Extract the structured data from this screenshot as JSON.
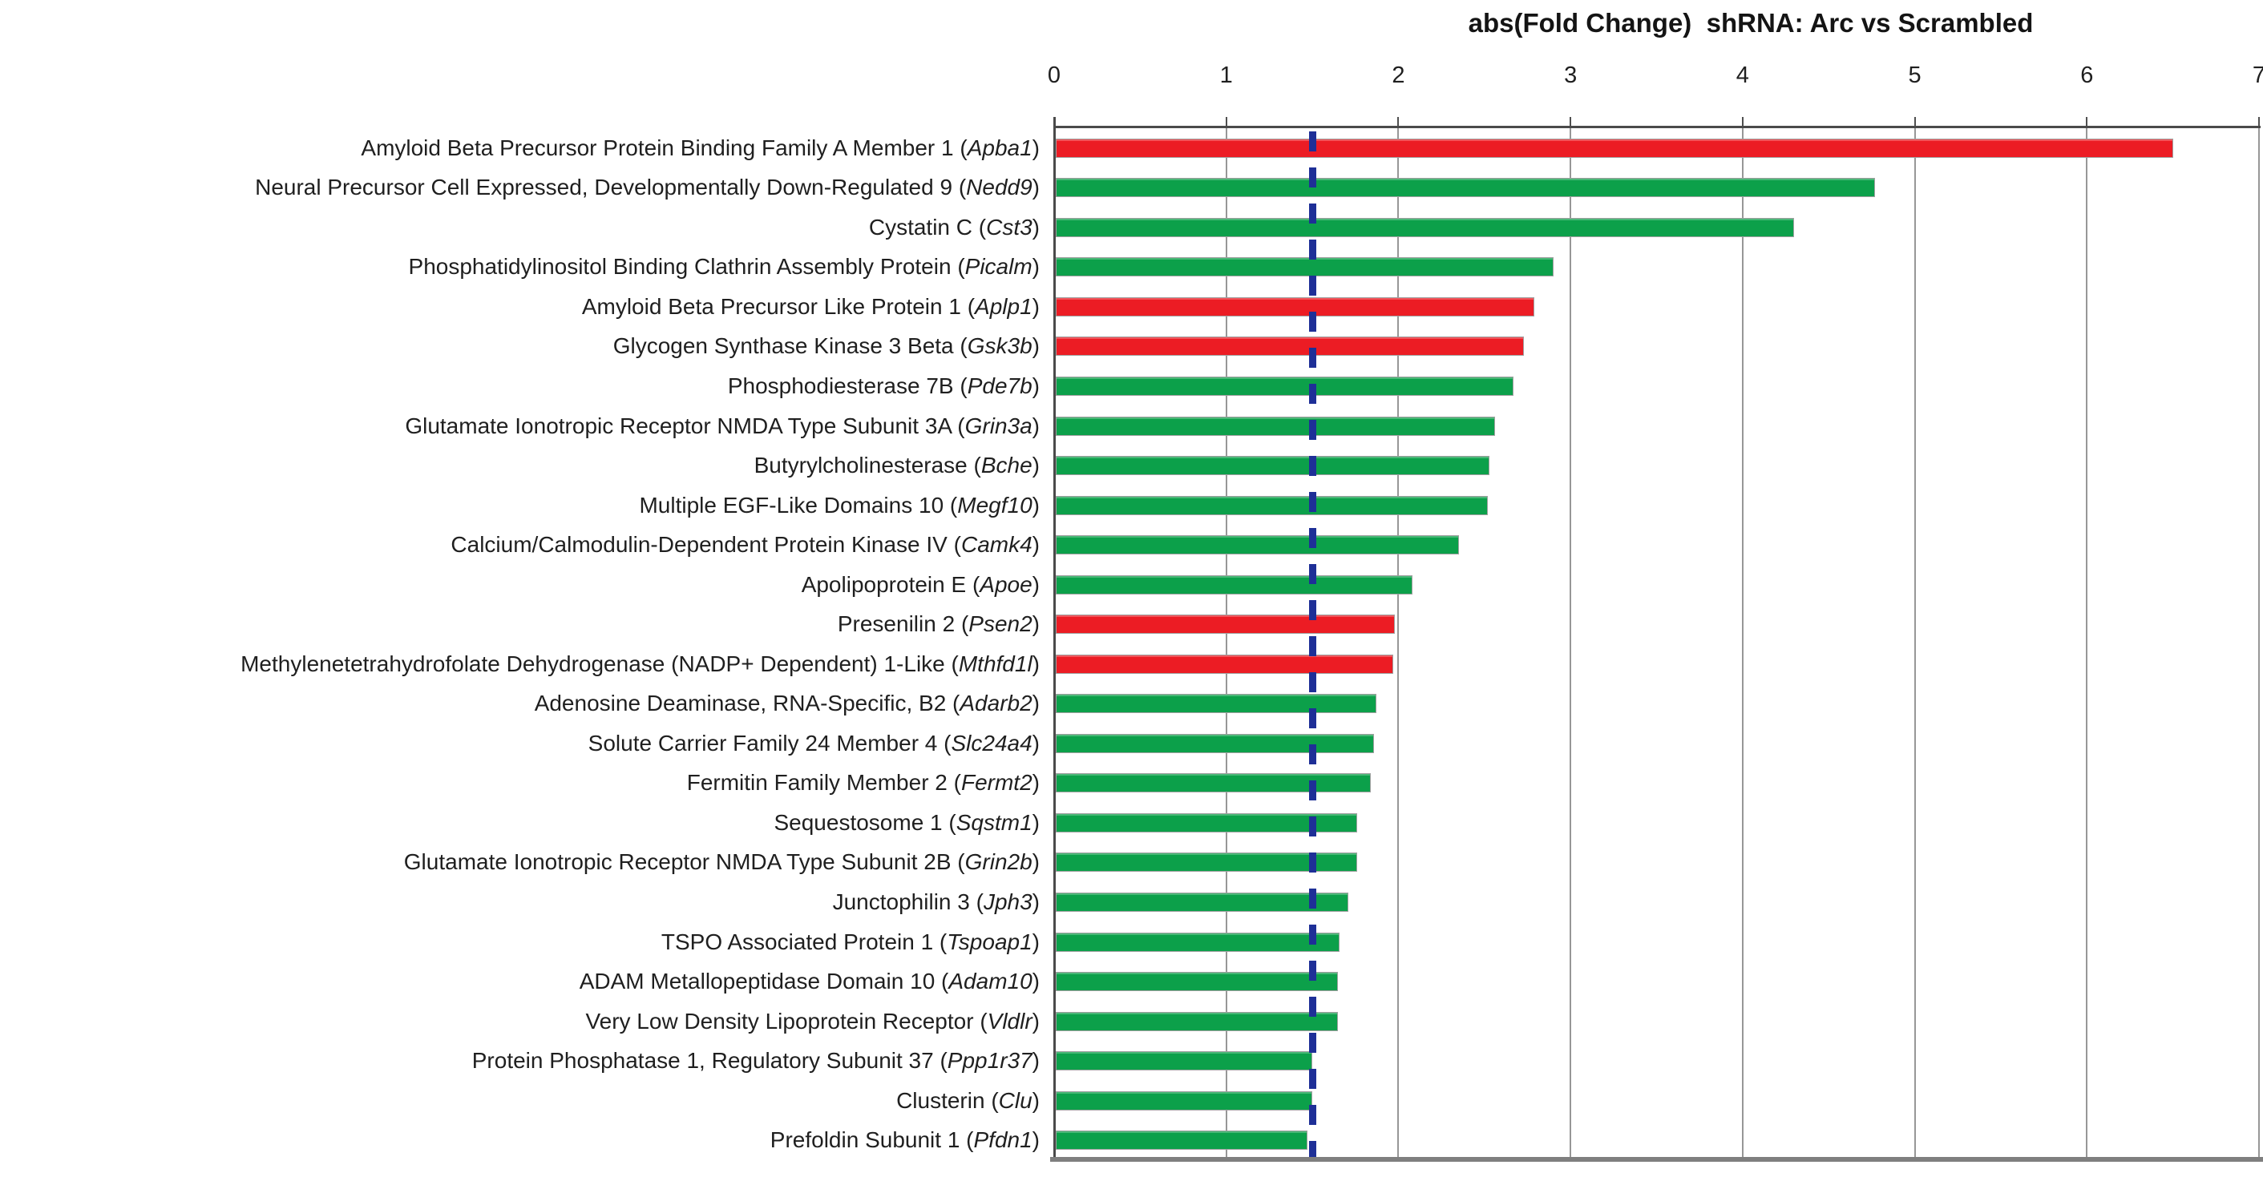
{
  "chart_data": {
    "type": "bar",
    "orientation": "horizontal",
    "title": "abs(Fold Change)  shRNA: Arc vs Scrambled",
    "xlabel": "",
    "ylabel": "",
    "xlim": [
      0,
      7
    ],
    "xticks": [
      0,
      1,
      2,
      3,
      4,
      5,
      6,
      7
    ],
    "tick_side": "top",
    "grid": true,
    "legend": false,
    "reference_line": {
      "value": 1.5,
      "orientation": "vertical",
      "style": "dashed",
      "color": "#1e2f97"
    },
    "palette": {
      "red": "#ec1c24",
      "green": "#0ca04a"
    },
    "bars": [
      {
        "name": "Amyloid Beta Precursor Protein Binding Family A Member 1",
        "gene": "Apba1",
        "value": 6.5,
        "color": "red"
      },
      {
        "name": "Neural Precursor Cell Expressed, Developmentally Down-Regulated 9",
        "gene": "Nedd9",
        "value": 4.77,
        "color": "green"
      },
      {
        "name": "Cystatin C",
        "gene": "Cst3",
        "value": 4.3,
        "color": "green"
      },
      {
        "name": "Phosphatidylinositol Binding Clathrin Assembly Protein",
        "gene": "Picalm",
        "value": 2.9,
        "color": "green"
      },
      {
        "name": "Amyloid Beta Precursor Like Protein 1",
        "gene": "Aplp1",
        "value": 2.79,
        "color": "red"
      },
      {
        "name": "Glycogen Synthase Kinase 3 Beta",
        "gene": "Gsk3b",
        "value": 2.73,
        "color": "red"
      },
      {
        "name": "Phosphodiesterase 7B",
        "gene": "Pde7b",
        "value": 2.67,
        "color": "green"
      },
      {
        "name": "Glutamate Ionotropic Receptor NMDA Type Subunit 3A",
        "gene": "Grin3a",
        "value": 2.56,
        "color": "green"
      },
      {
        "name": "Butyrylcholinesterase",
        "gene": "Bche",
        "value": 2.53,
        "color": "green"
      },
      {
        "name": "Multiple EGF-Like Domains 10",
        "gene": "Megf10",
        "value": 2.52,
        "color": "green"
      },
      {
        "name": "Calcium/Calmodulin-Dependent Protein Kinase IV",
        "gene": "Camk4",
        "value": 2.35,
        "color": "green"
      },
      {
        "name": "Apolipoprotein E",
        "gene": "Apoe",
        "value": 2.08,
        "color": "green"
      },
      {
        "name": "Presenilin 2",
        "gene": "Psen2",
        "value": 1.98,
        "color": "red"
      },
      {
        "name": "Methylenetetrahydrofolate Dehydrogenase (NADP+ Dependent) 1-Like",
        "gene": "Mthfd1l",
        "value": 1.97,
        "color": "red"
      },
      {
        "name": "Adenosine Deaminase, RNA-Specific, B2",
        "gene": "Adarb2",
        "value": 1.87,
        "color": "green"
      },
      {
        "name": "Solute Carrier Family 24 Member 4",
        "gene": "Slc24a4",
        "value": 1.86,
        "color": "green"
      },
      {
        "name": "Fermitin Family Member 2",
        "gene": "Fermt2",
        "value": 1.84,
        "color": "green"
      },
      {
        "name": "Sequestosome 1",
        "gene": "Sqstm1",
        "value": 1.76,
        "color": "green"
      },
      {
        "name": "Glutamate Ionotropic Receptor NMDA Type Subunit 2B",
        "gene": "Grin2b",
        "value": 1.76,
        "color": "green"
      },
      {
        "name": "Junctophilin 3",
        "gene": "Jph3",
        "value": 1.71,
        "color": "green"
      },
      {
        "name": "TSPO Associated Protein 1",
        "gene": "Tspoap1",
        "value": 1.66,
        "color": "green"
      },
      {
        "name": "ADAM Metallopeptidase Domain 10",
        "gene": "Adam10",
        "value": 1.65,
        "color": "green"
      },
      {
        "name": "Very Low Density Lipoprotein Receptor",
        "gene": "Vldlr",
        "value": 1.65,
        "color": "green"
      },
      {
        "name": "Protein Phosphatase 1, Regulatory Subunit 37",
        "gene": "Ppp1r37",
        "value": 1.5,
        "color": "green"
      },
      {
        "name": "Clusterin",
        "gene": "Clu",
        "value": 1.5,
        "color": "green"
      },
      {
        "name": "Prefoldin Subunit 1",
        "gene": "Pfdn1",
        "value": 1.47,
        "color": "green"
      }
    ]
  }
}
